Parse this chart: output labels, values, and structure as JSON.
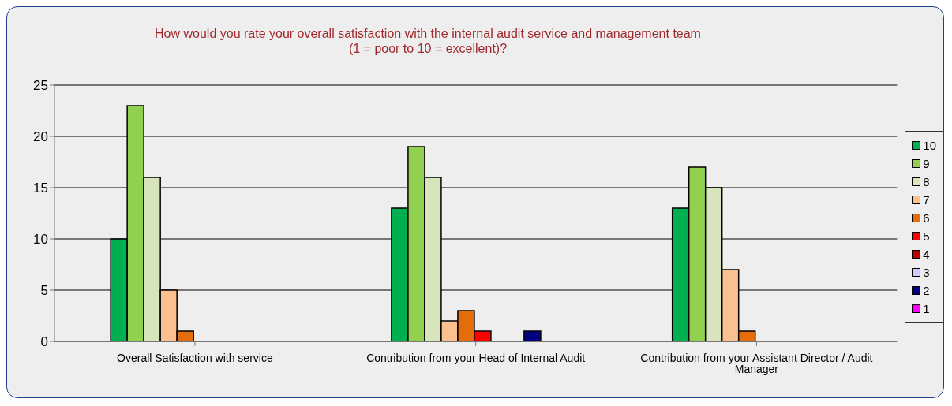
{
  "chart_data": {
    "type": "bar",
    "title": "How would you rate your overall satisfaction with the internal audit service and management team\n(1 = poor to 10 = excellent)?",
    "categories": [
      "Overall Satisfaction with service",
      "Contribution from your Head of Internal Audit",
      "Contribution from your Assistant Director / Audit Manager"
    ],
    "series": [
      {
        "name": "10",
        "color": "#00b050",
        "values": [
          10,
          13,
          13
        ]
      },
      {
        "name": "9",
        "color": "#92d050",
        "values": [
          23,
          19,
          17
        ]
      },
      {
        "name": "8",
        "color": "#d8e4bc",
        "values": [
          16,
          16,
          15
        ]
      },
      {
        "name": "7",
        "color": "#fac090",
        "values": [
          5,
          2,
          7
        ]
      },
      {
        "name": "6",
        "color": "#e46c0a",
        "values": [
          1,
          3,
          1
        ]
      },
      {
        "name": "5",
        "color": "#ff0000",
        "values": [
          0,
          1,
          0
        ]
      },
      {
        "name": "4",
        "color": "#c00000",
        "values": [
          0,
          0,
          0
        ]
      },
      {
        "name": "3",
        "color": "#ccccff",
        "values": [
          0,
          0,
          0
        ]
      },
      {
        "name": "2",
        "color": "#000080",
        "values": [
          0,
          1,
          0
        ]
      },
      {
        "name": "1",
        "color": "#ff00ff",
        "values": [
          0,
          0,
          0
        ]
      }
    ],
    "ylim": [
      0,
      25
    ],
    "yticks": [
      0,
      5,
      10,
      15,
      20,
      25
    ],
    "grid": "y",
    "legend": "right"
  }
}
